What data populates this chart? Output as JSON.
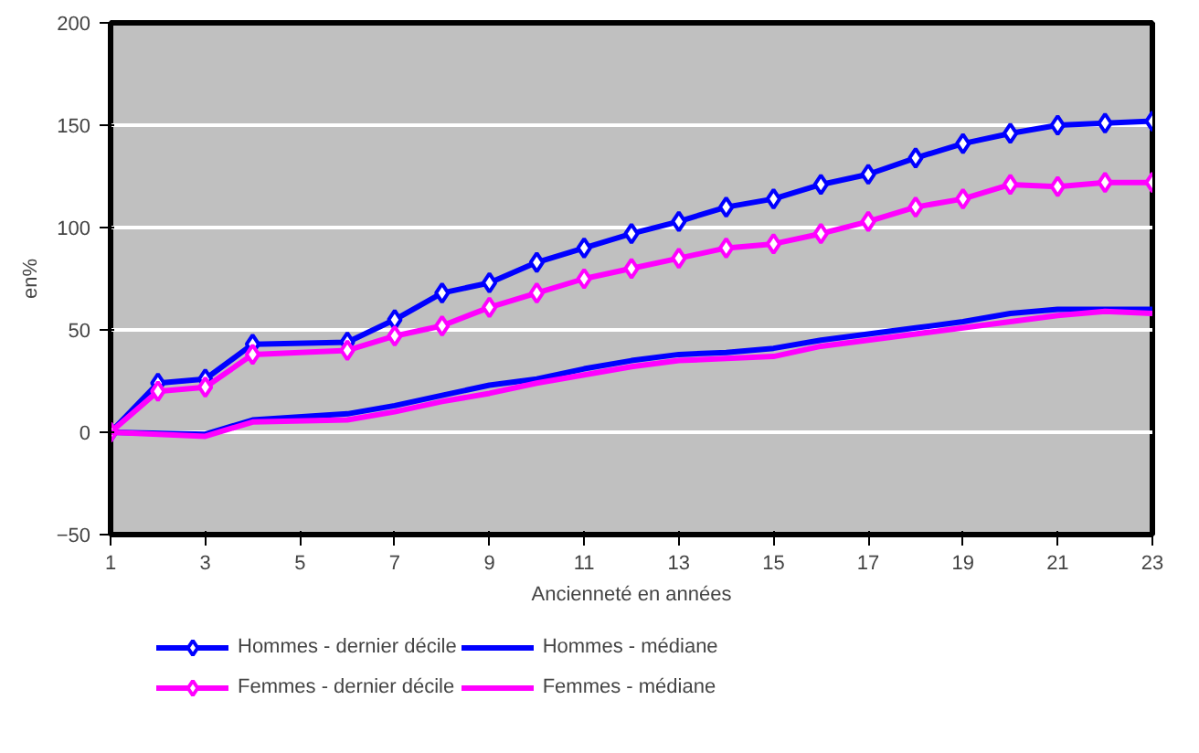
{
  "chart_data": {
    "type": "line",
    "xlabel": "Ancienneté en années",
    "ylabel": "en%",
    "xlim": [
      1,
      23
    ],
    "xticks": [
      1,
      3,
      5,
      7,
      9,
      11,
      13,
      15,
      17,
      19,
      21,
      23
    ],
    "ylim": [
      -50,
      200
    ],
    "yticks": [
      -50,
      0,
      50,
      100,
      150,
      200
    ],
    "grid": "y",
    "legend": "bottom",
    "series": [
      {
        "name": "Hommes - dernier décile",
        "color": "#0000ff",
        "marker": "diamond",
        "x": [
          1,
          2,
          3,
          4,
          6,
          7,
          8,
          9,
          10,
          11,
          12,
          13,
          14,
          15,
          16,
          17,
          18,
          19,
          20,
          21,
          22,
          23
        ],
        "values": [
          0,
          24,
          26,
          43,
          44,
          55,
          68,
          73,
          83,
          90,
          97,
          103,
          110,
          114,
          121,
          126,
          134,
          141,
          146,
          150,
          151,
          152
        ]
      },
      {
        "name": "Hommes - médiane",
        "color": "#0000ff",
        "marker": "none",
        "x": [
          1,
          3,
          4,
          6,
          7,
          8,
          9,
          10,
          11,
          12,
          13,
          14,
          15,
          16,
          17,
          18,
          19,
          20,
          21,
          22,
          23
        ],
        "values": [
          0,
          -1,
          6,
          9,
          13,
          18,
          23,
          26,
          31,
          35,
          38,
          39,
          41,
          45,
          48,
          51,
          54,
          58,
          60,
          60,
          60
        ]
      },
      {
        "name": "Femmes - dernier décile",
        "color": "#ff00ff",
        "marker": "diamond",
        "x": [
          1,
          2,
          3,
          4,
          6,
          7,
          8,
          9,
          10,
          11,
          12,
          13,
          14,
          15,
          16,
          17,
          18,
          19,
          20,
          21,
          22,
          23
        ],
        "values": [
          0,
          20,
          22,
          38,
          40,
          47,
          52,
          61,
          68,
          75,
          80,
          85,
          90,
          92,
          97,
          103,
          110,
          114,
          121,
          120,
          122,
          122
        ]
      },
      {
        "name": "Femmes - médiane",
        "color": "#ff00ff",
        "marker": "none",
        "x": [
          1,
          3,
          4,
          6,
          7,
          8,
          9,
          10,
          11,
          12,
          13,
          14,
          15,
          16,
          17,
          18,
          19,
          20,
          21,
          22,
          23
        ],
        "values": [
          0,
          -2,
          5,
          6,
          10,
          15,
          19,
          24,
          28,
          32,
          35,
          36,
          37,
          42,
          45,
          48,
          51,
          54,
          57,
          59,
          58
        ]
      }
    ]
  }
}
